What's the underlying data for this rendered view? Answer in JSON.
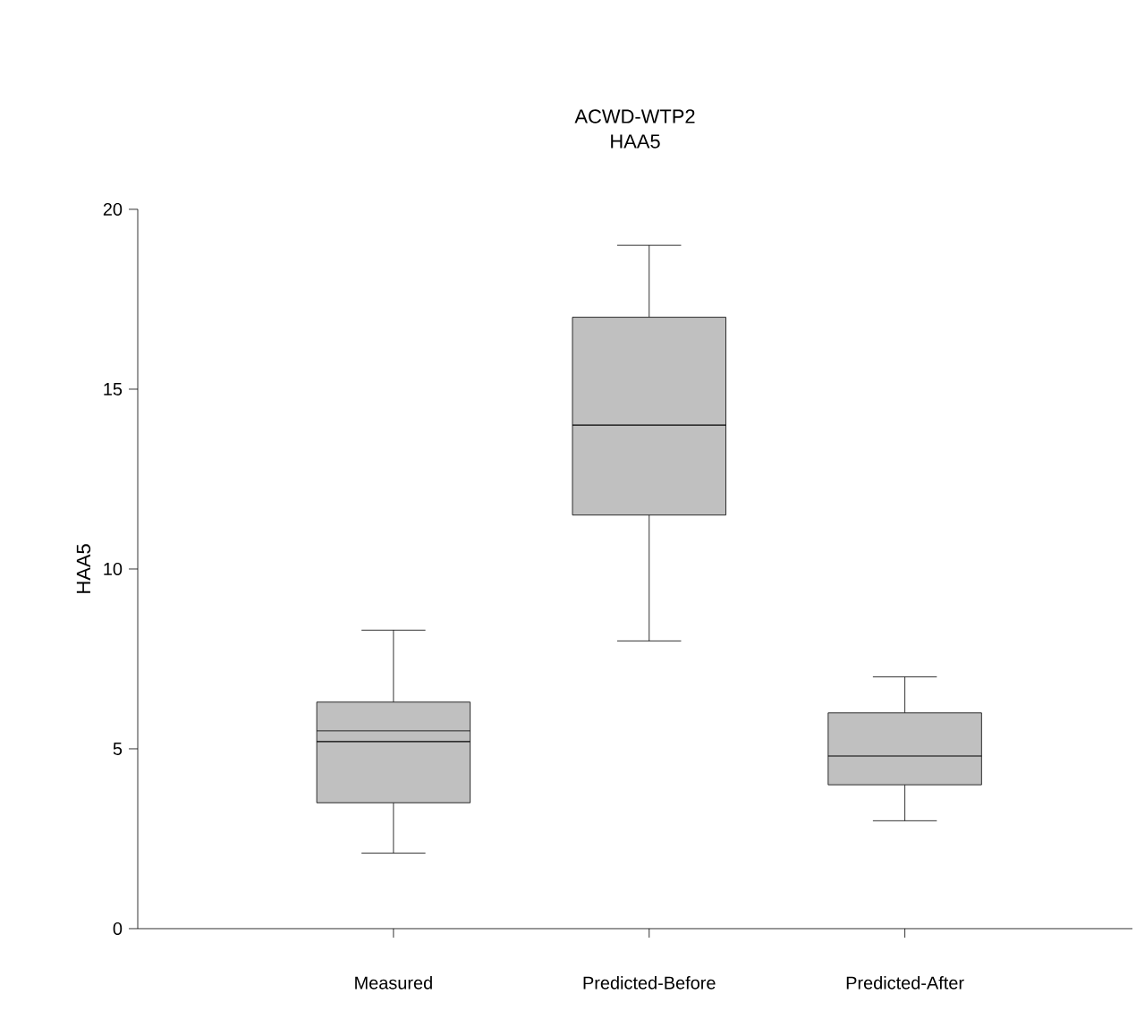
{
  "chart_data": {
    "type": "box",
    "title": "ACWD-WTP2\nHAA5",
    "ylabel": "HAA5",
    "categories": [
      "Measured",
      "Predicted-Before",
      "Predicted-After"
    ],
    "color": "#c0c0c0",
    "boxes": [
      {
        "low": 2.1,
        "q1": 3.5,
        "median": 5.2,
        "q3": 6.3,
        "high": 8.3,
        "mean": 5.5
      },
      {
        "low": 8,
        "q1": 11.5,
        "median": 14,
        "q3": 17,
        "high": 19
      },
      {
        "low": 3,
        "q1": 4,
        "median": 4.8,
        "q3": 6,
        "high": 7
      }
    ],
    "ylim": [
      0,
      20
    ],
    "yticks": [
      0,
      5,
      10,
      15,
      20
    ]
  }
}
